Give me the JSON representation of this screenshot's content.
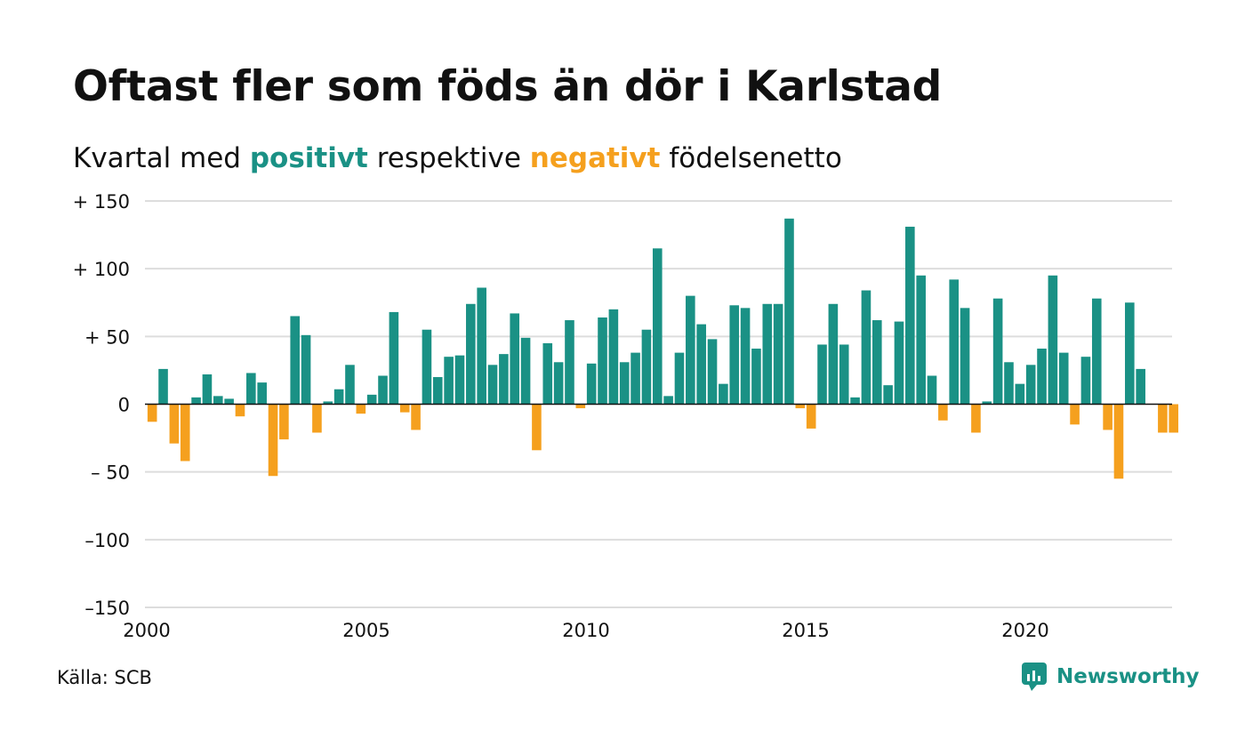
{
  "title": "Oftast fler som föds än dör i Karlstad",
  "subtitle": {
    "prefix": "Kvartal med ",
    "positive": "positivt",
    "middle": " respektive ",
    "negative": "negativt",
    "suffix": " födelsenetto"
  },
  "source": "Källa: SCB",
  "brand": {
    "name": "Newsworthy",
    "icon": "newsworthy-logo-icon"
  },
  "colors": {
    "positive": "#1a9185",
    "negative": "#f5a01e",
    "grid": "#dddddd",
    "zero_line": "#111111"
  },
  "chart_data": {
    "type": "bar",
    "title": "Oftast fler som föds än dör i Karlstad",
    "subtitle": "Kvartal med positivt respektive negativt födelsenetto",
    "xlabel": "",
    "ylabel": "",
    "ylim": [
      -150,
      150
    ],
    "yticks": [
      150,
      100,
      50,
      0,
      -50,
      -100,
      -150
    ],
    "ytick_labels": [
      "+ 150",
      "+ 100",
      "+  50",
      "0",
      "– 50",
      "–100",
      "–150"
    ],
    "xticks": [
      2000,
      2005,
      2010,
      2015,
      2020
    ],
    "xtick_labels": [
      "2000",
      "2005",
      "2010",
      "2015",
      "2020"
    ],
    "grid": true,
    "legend": "none",
    "categories": [
      "2000 Q1",
      "2000 Q2",
      "2000 Q3",
      "2000 Q4",
      "2001 Q1",
      "2001 Q2",
      "2001 Q3",
      "2001 Q4",
      "2002 Q1",
      "2002 Q2",
      "2002 Q3",
      "2002 Q4",
      "2003 Q1",
      "2003 Q2",
      "2003 Q3",
      "2003 Q4",
      "2004 Q1",
      "2004 Q2",
      "2004 Q3",
      "2004 Q4",
      "2005 Q1",
      "2005 Q2",
      "2005 Q3",
      "2005 Q4",
      "2006 Q1",
      "2006 Q2",
      "2006 Q3",
      "2006 Q4",
      "2007 Q1",
      "2007 Q2",
      "2007 Q3",
      "2007 Q4",
      "2008 Q1",
      "2008 Q2",
      "2008 Q3",
      "2008 Q4",
      "2009 Q1",
      "2009 Q2",
      "2009 Q3",
      "2009 Q4",
      "2010 Q1",
      "2010 Q2",
      "2010 Q3",
      "2010 Q4",
      "2011 Q1",
      "2011 Q2",
      "2011 Q3",
      "2011 Q4",
      "2012 Q1",
      "2012 Q2",
      "2012 Q3",
      "2012 Q4",
      "2013 Q1",
      "2013 Q2",
      "2013 Q3",
      "2013 Q4",
      "2014 Q1",
      "2014 Q2",
      "2014 Q3",
      "2014 Q4",
      "2015 Q1",
      "2015 Q2",
      "2015 Q3",
      "2015 Q4",
      "2016 Q1",
      "2016 Q2",
      "2016 Q3",
      "2016 Q4",
      "2017 Q1",
      "2017 Q2",
      "2017 Q3",
      "2017 Q4",
      "2018 Q1",
      "2018 Q2",
      "2018 Q3",
      "2018 Q4",
      "2019 Q1",
      "2019 Q2",
      "2019 Q3",
      "2019 Q4",
      "2020 Q1",
      "2020 Q2",
      "2020 Q3",
      "2020 Q4",
      "2021 Q1",
      "2021 Q2",
      "2021 Q3",
      "2021 Q4",
      "2022 Q1",
      "2022 Q2",
      "2022 Q3",
      "2022 Q4",
      "2023 Q1",
      "2023 Q2"
    ],
    "values": [
      -13,
      26,
      -29,
      -42,
      5,
      22,
      6,
      4,
      -9,
      23,
      16,
      -53,
      -26,
      65,
      51,
      -21,
      2,
      11,
      29,
      -7,
      7,
      21,
      68,
      -6,
      -19,
      55,
      20,
      35,
      36,
      74,
      86,
      29,
      37,
      67,
      49,
      -34,
      45,
      31,
      62,
      -3,
      30,
      64,
      70,
      31,
      38,
      55,
      115,
      6,
      38,
      80,
      59,
      48,
      15,
      73,
      71,
      41,
      74,
      74,
      137,
      -3,
      -18,
      44,
      74,
      44,
      5,
      84,
      62,
      14,
      61,
      131,
      95,
      21,
      -12,
      92,
      71,
      -21,
      2,
      78,
      31,
      15,
      29,
      41,
      95,
      38,
      -15,
      35,
      78,
      -19,
      -55,
      75,
      26,
      0,
      -21,
      -21
    ]
  }
}
